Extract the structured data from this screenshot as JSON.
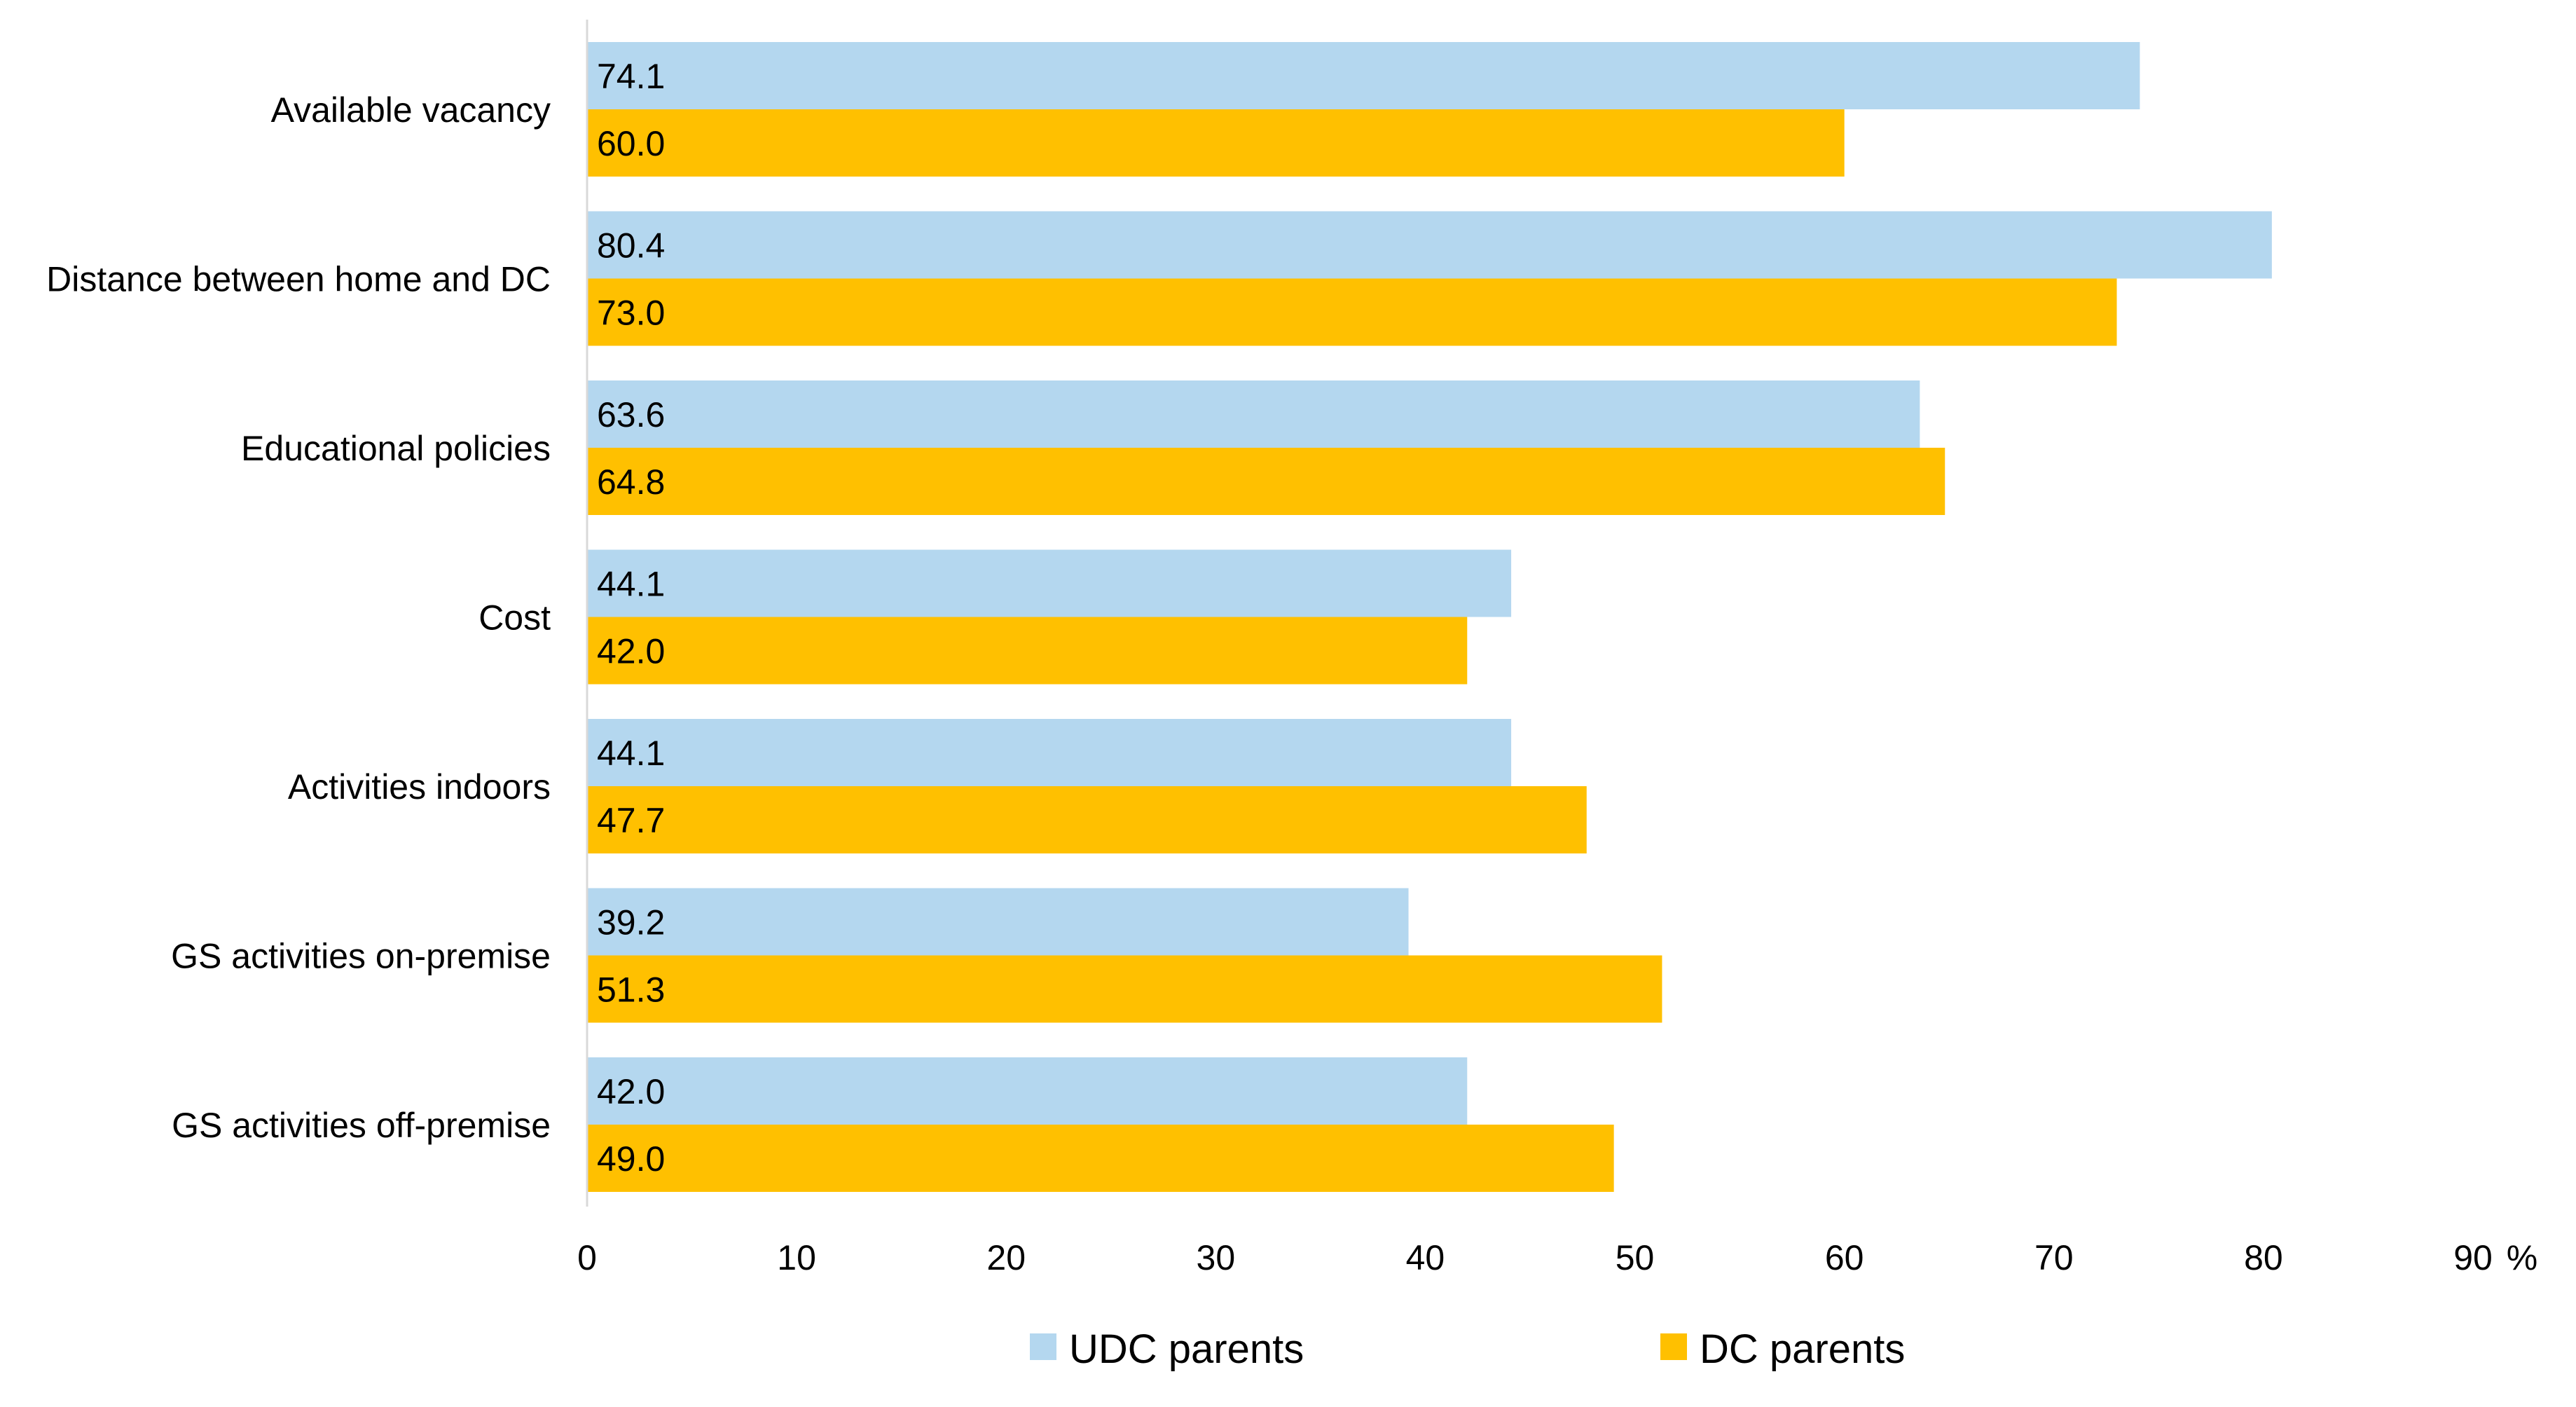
{
  "chart_data": {
    "type": "bar",
    "orientation": "horizontal",
    "title": "",
    "xlabel": "",
    "ylabel": "",
    "unit_label": "%",
    "xlim": [
      0,
      90
    ],
    "xticks": [
      0,
      10,
      20,
      30,
      40,
      50,
      60,
      70,
      80,
      90
    ],
    "grid": false,
    "legend_position": "bottom",
    "categories": [
      "Available vacancy",
      "Distance between home and DC",
      "Educational policies",
      "Cost",
      "Activities indoors",
      "GS activities on-premise",
      "GS activities off-premise"
    ],
    "series": [
      {
        "name": "UDC parents",
        "color": "#B4D7EF",
        "values": [
          74.1,
          80.4,
          63.6,
          44.1,
          44.1,
          39.2,
          42.0
        ],
        "labels": [
          "74.1",
          "80.4",
          "63.6",
          "44.1",
          "44.1",
          "39.2",
          "42.0"
        ]
      },
      {
        "name": "DC parents",
        "color": "#FFC000",
        "values": [
          60.0,
          73.0,
          64.8,
          42.0,
          47.7,
          51.3,
          49.0
        ],
        "labels": [
          "60.0",
          "73.0",
          "64.8",
          "42.0",
          "47.7",
          "51.3",
          "49.0"
        ]
      }
    ],
    "axis_color": "#D9D9D9"
  }
}
